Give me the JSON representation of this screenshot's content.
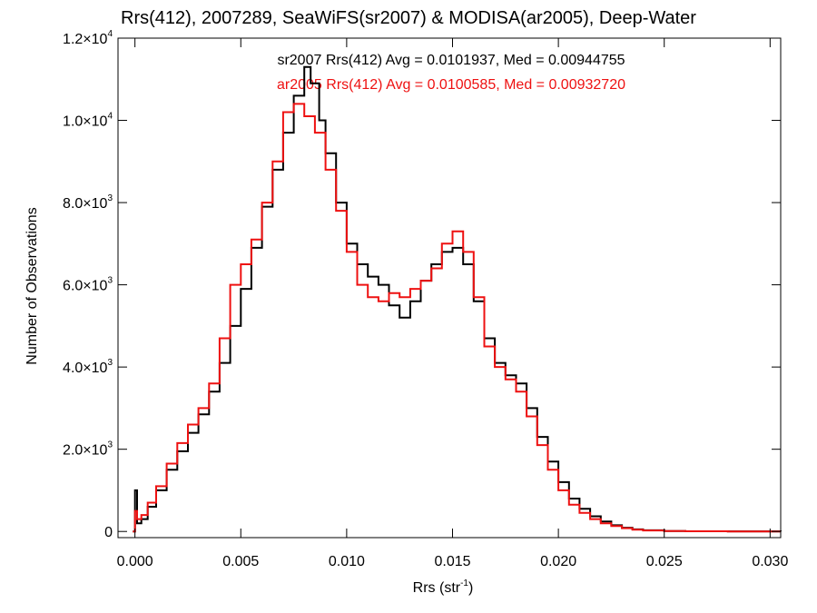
{
  "chart_data": {
    "type": "line",
    "title": "Rrs(412), 2007289, SeaWiFS(sr2007) & MODISA(ar2005), Deep-Water",
    "xlabel": {
      "main": "Rrs (str",
      "sup": "-1",
      "close": ")"
    },
    "ylabel": "Number of Observations",
    "xlim": [
      -0.0008,
      0.0305
    ],
    "ylim": [
      -150,
      12000
    ],
    "x_ticks": [
      {
        "value": 0.0,
        "label": "0.000"
      },
      {
        "value": 0.005,
        "label": "0.005"
      },
      {
        "value": 0.01,
        "label": "0.010"
      },
      {
        "value": 0.015,
        "label": "0.015"
      },
      {
        "value": 0.02,
        "label": "0.020"
      },
      {
        "value": 0.025,
        "label": "0.025"
      },
      {
        "value": 0.03,
        "label": "0.030"
      }
    ],
    "y_ticks": [
      {
        "value": 0,
        "mant": "0",
        "exp": ""
      },
      {
        "value": 2000,
        "mant": "2.0×10",
        "exp": "3"
      },
      {
        "value": 4000,
        "mant": "4.0×10",
        "exp": "3"
      },
      {
        "value": 6000,
        "mant": "6.0×10",
        "exp": "3"
      },
      {
        "value": 8000,
        "mant": "8.0×10",
        "exp": "3"
      },
      {
        "value": 10000,
        "mant": "1.0×10",
        "exp": "4"
      },
      {
        "value": 12000,
        "mant": "1.2×10",
        "exp": "4"
      }
    ],
    "annotations": [
      {
        "text": "sr2007 Rrs(412) Avg = 0.0101937, Med = 0.00944755",
        "color": "#000000"
      },
      {
        "text": "ar2005 Rrs(412) Avg = 0.0100585, Med = 0.00932720",
        "color": "#ee1111"
      }
    ],
    "series": [
      {
        "color": "#000000",
        "points": [
          [
            -0.0001,
            0
          ],
          [
            0.0,
            1000
          ],
          [
            0.0001,
            200
          ],
          [
            0.0003,
            300
          ],
          [
            0.0006,
            600
          ],
          [
            0.001,
            1000
          ],
          [
            0.0015,
            1500
          ],
          [
            0.002,
            1950
          ],
          [
            0.0025,
            2400
          ],
          [
            0.003,
            2850
          ],
          [
            0.0035,
            3400
          ],
          [
            0.004,
            4100
          ],
          [
            0.0045,
            5000
          ],
          [
            0.005,
            5900
          ],
          [
            0.0055,
            6900
          ],
          [
            0.006,
            7900
          ],
          [
            0.0065,
            8800
          ],
          [
            0.007,
            9700
          ],
          [
            0.0075,
            10600
          ],
          [
            0.008,
            11300
          ],
          [
            0.0083,
            10900
          ],
          [
            0.0087,
            10000
          ],
          [
            0.009,
            9200
          ],
          [
            0.0095,
            8000
          ],
          [
            0.01,
            7000
          ],
          [
            0.0105,
            6500
          ],
          [
            0.011,
            6200
          ],
          [
            0.0115,
            6000
          ],
          [
            0.012,
            5500
          ],
          [
            0.0125,
            5200
          ],
          [
            0.013,
            5600
          ],
          [
            0.0135,
            6100
          ],
          [
            0.014,
            6500
          ],
          [
            0.0145,
            6800
          ],
          [
            0.015,
            6900
          ],
          [
            0.0155,
            6500
          ],
          [
            0.016,
            5600
          ],
          [
            0.0165,
            4700
          ],
          [
            0.017,
            4100
          ],
          [
            0.0175,
            3800
          ],
          [
            0.018,
            3600
          ],
          [
            0.0185,
            3000
          ],
          [
            0.019,
            2300
          ],
          [
            0.0195,
            1700
          ],
          [
            0.02,
            1200
          ],
          [
            0.0205,
            800
          ],
          [
            0.021,
            550
          ],
          [
            0.0215,
            370
          ],
          [
            0.022,
            240
          ],
          [
            0.0225,
            150
          ],
          [
            0.023,
            90
          ],
          [
            0.0235,
            50
          ],
          [
            0.024,
            30
          ],
          [
            0.025,
            12
          ],
          [
            0.026,
            5
          ],
          [
            0.028,
            2
          ],
          [
            0.0305,
            0
          ]
        ]
      },
      {
        "color": "#ee1111",
        "points": [
          [
            -0.0001,
            0
          ],
          [
            0.0,
            500
          ],
          [
            0.0001,
            300
          ],
          [
            0.0003,
            400
          ],
          [
            0.0006,
            700
          ],
          [
            0.001,
            1100
          ],
          [
            0.0015,
            1650
          ],
          [
            0.002,
            2150
          ],
          [
            0.0025,
            2600
          ],
          [
            0.003,
            3000
          ],
          [
            0.0035,
            3600
          ],
          [
            0.004,
            4700
          ],
          [
            0.0045,
            6000
          ],
          [
            0.005,
            6500
          ],
          [
            0.0055,
            7100
          ],
          [
            0.006,
            8000
          ],
          [
            0.0065,
            9000
          ],
          [
            0.007,
            10200
          ],
          [
            0.0075,
            10400
          ],
          [
            0.008,
            10100
          ],
          [
            0.0085,
            9700
          ],
          [
            0.009,
            8800
          ],
          [
            0.0095,
            7800
          ],
          [
            0.01,
            6800
          ],
          [
            0.0105,
            6000
          ],
          [
            0.011,
            5700
          ],
          [
            0.0115,
            5600
          ],
          [
            0.012,
            5800
          ],
          [
            0.0125,
            5700
          ],
          [
            0.013,
            5900
          ],
          [
            0.0135,
            6100
          ],
          [
            0.014,
            6400
          ],
          [
            0.0145,
            7000
          ],
          [
            0.015,
            7300
          ],
          [
            0.0155,
            6800
          ],
          [
            0.016,
            5700
          ],
          [
            0.0165,
            4500
          ],
          [
            0.017,
            4000
          ],
          [
            0.0175,
            3700
          ],
          [
            0.018,
            3400
          ],
          [
            0.0185,
            2800
          ],
          [
            0.019,
            2100
          ],
          [
            0.0195,
            1500
          ],
          [
            0.02,
            1000
          ],
          [
            0.0205,
            650
          ],
          [
            0.021,
            450
          ],
          [
            0.0215,
            300
          ],
          [
            0.022,
            200
          ],
          [
            0.0225,
            130
          ],
          [
            0.023,
            80
          ],
          [
            0.0235,
            45
          ],
          [
            0.024,
            25
          ],
          [
            0.025,
            10
          ],
          [
            0.026,
            4
          ],
          [
            0.028,
            1
          ],
          [
            0.0305,
            0
          ]
        ]
      }
    ]
  }
}
